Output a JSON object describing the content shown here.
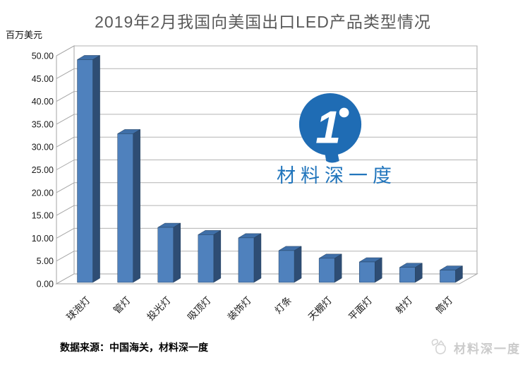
{
  "title": "2019年2月我国向美国出口LED产品类型情况",
  "y_axis_unit": "百万美元",
  "source_note": "数据来源：中国海关，材料深一度",
  "watermark": {
    "logo_glyph": "1°",
    "brand": "材料深一度"
  },
  "footer": {
    "brand": "材料深一度",
    "icon": "paper-bird-icon"
  },
  "colors": {
    "bar_front": "#4f81bd",
    "bar_top": "#3f6fa8",
    "bar_side": "#2e4d74",
    "bar_outline": "#24405e",
    "gridline": "#b3b3b3",
    "wall": "#a6a6a6",
    "title_text": "#595959",
    "axis_text": "#1a1a1a",
    "logo_blue": "#1f6cb4",
    "watermark_gray": "#cbcbcb"
  },
  "chart_data": {
    "type": "bar",
    "style": "3d-column",
    "title": "2019年2月我国向美国出口LED产品类型情况",
    "xlabel": "",
    "ylabel": "百万美元",
    "categories": [
      "球泡灯",
      "管灯",
      "投光灯",
      "吸顶灯",
      "装饰灯",
      "灯条",
      "天棚灯",
      "平面灯",
      "射灯",
      "筒灯"
    ],
    "values": [
      49.0,
      32.7,
      12.1,
      10.5,
      9.8,
      7.0,
      5.3,
      4.5,
      3.3,
      2.7
    ],
    "ylim": [
      0,
      50
    ],
    "ytick_step": 5,
    "ytick_labels": [
      "0.00",
      "5.00",
      "10.00",
      "15.00",
      "20.00",
      "25.00",
      "30.00",
      "35.00",
      "40.00",
      "45.00",
      "50.00"
    ],
    "grid": "horizontal",
    "legend": "none"
  }
}
